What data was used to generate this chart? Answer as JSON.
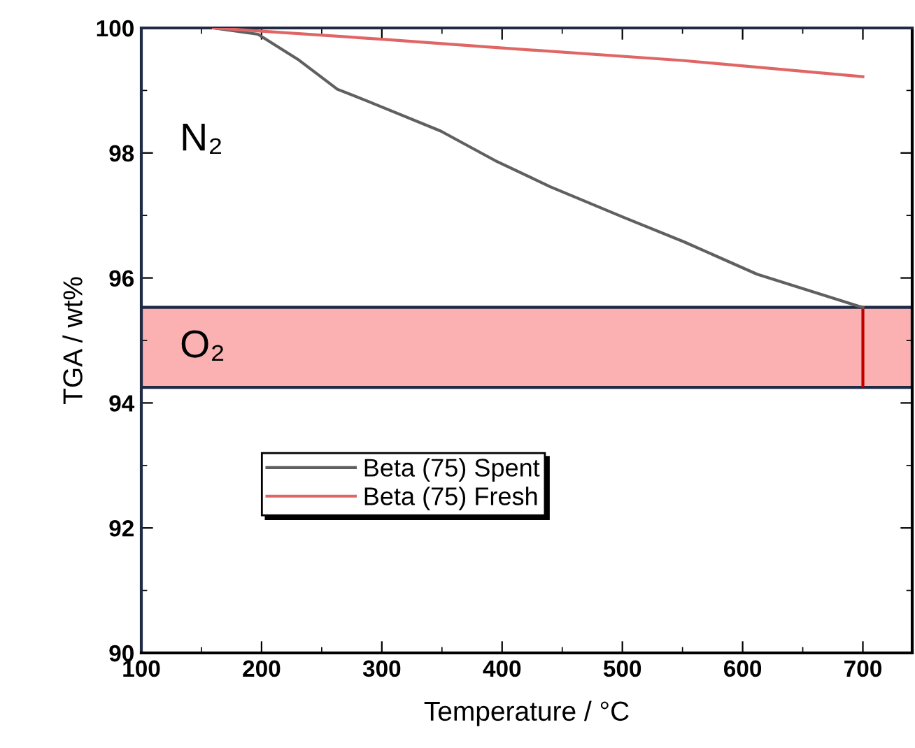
{
  "chart_data": {
    "type": "line",
    "xlabel": "Temperature / °C",
    "ylabel": "TGA / wt%",
    "xlim": [
      100,
      741
    ],
    "xticks": [
      100,
      200,
      300,
      400,
      500,
      600,
      700
    ],
    "ylim": [
      90,
      100
    ],
    "yticks": [
      90,
      92,
      94,
      96,
      98,
      100
    ],
    "series": [
      {
        "name": "Beta (75) Spent",
        "color": "#606060",
        "x": [
          160,
          197,
          230,
          263,
          288,
          349,
          394,
          440,
          501,
          551,
          612,
          696,
          700
        ],
        "values": [
          100,
          99.9,
          99.5,
          99.02,
          98.83,
          98.35,
          97.88,
          97.46,
          96.97,
          96.58,
          96.06,
          95.55,
          95.53
        ]
      },
      {
        "name": "Beta (75) Fresh",
        "color": "#e06666",
        "x": [
          160,
          300,
          400,
          550,
          700
        ],
        "values": [
          100,
          99.82,
          99.68,
          99.48,
          99.22
        ]
      }
    ],
    "bands": [
      {
        "axis": "y",
        "from": 94.25,
        "to": 95.53,
        "label": "O₂",
        "color": "#fbb1b1"
      }
    ],
    "ref_lines": [
      {
        "axis": "x",
        "value": 700,
        "label": null,
        "color": "#c00000"
      }
    ],
    "annotations": [
      "N₂"
    ],
    "legend": "left",
    "grid": false
  }
}
